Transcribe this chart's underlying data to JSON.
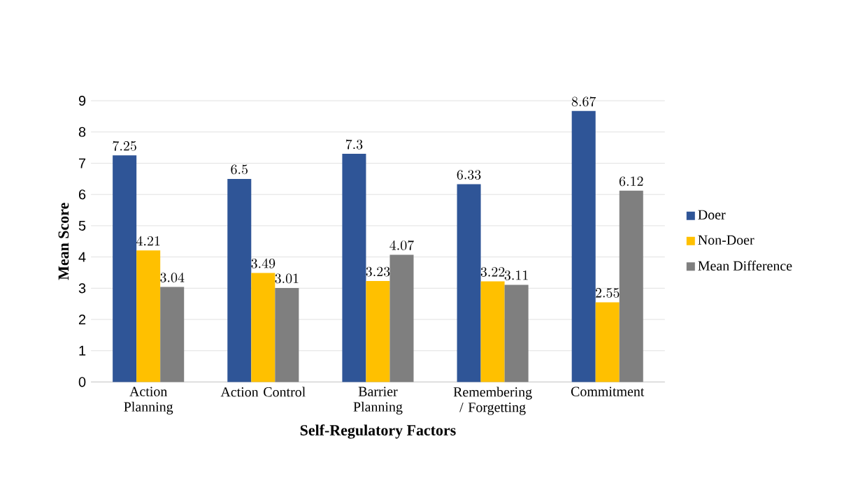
{
  "chart_data": {
    "type": "bar",
    "xlabel": "Self-Regulatory Factors",
    "ylabel": "Mean Score",
    "categories": [
      "Action Planning",
      "Action Control",
      "Barrier Planning",
      "Remembering / Forgetting",
      "Commitment"
    ],
    "series": [
      {
        "name": "Doer",
        "color": "#2f5597",
        "values": [
          7.25,
          6.5,
          7.3,
          6.33,
          8.67
        ]
      },
      {
        "name": "Non-Doer",
        "color": "#ffc000",
        "values": [
          4.21,
          3.49,
          3.23,
          3.22,
          2.55
        ]
      },
      {
        "name": "Mean Difference",
        "color": "#7f7f7f",
        "values": [
          3.04,
          3.01,
          4.07,
          3.11,
          6.12
        ]
      }
    ],
    "ylim": [
      0,
      9
    ],
    "yticks": [
      0,
      1,
      2,
      3,
      4,
      5,
      6,
      7,
      8,
      9
    ],
    "grid": "y",
    "legend": "right",
    "data_labels": true
  }
}
